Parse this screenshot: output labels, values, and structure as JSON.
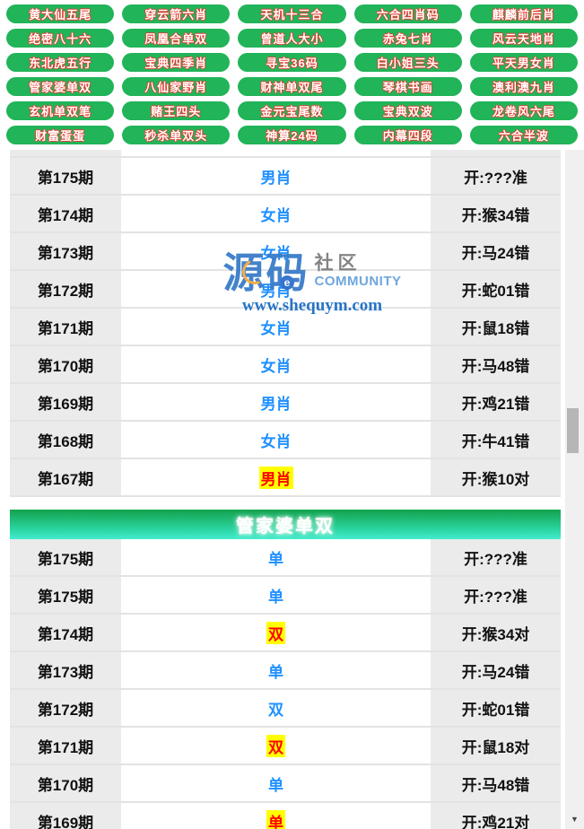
{
  "nav": {
    "buttons": [
      "黄大仙五尾",
      "穿云箭六肖",
      "天机十三合",
      "六合四肖码",
      "麒麟前后肖",
      "绝密八十六",
      "凤凰合单双",
      "曾道人大小",
      "赤兔七肖",
      "风云天地肖",
      "东北虎五行",
      "宝典四季肖",
      "寻宝36码",
      "白小姐三头",
      "平天男女肖",
      "管家婆单双",
      "八仙家野肖",
      "财神单双尾",
      "琴棋书画",
      "澳利澳九肖",
      "玄机单双笔",
      "赌王四头",
      "金元宝尾数",
      "宝典双波",
      "龙卷风六尾",
      "财富蛋蛋",
      "秒杀单双头",
      "神算24码",
      "内幕四段",
      "六合半波"
    ]
  },
  "watermark": {
    "logo_main": "源码",
    "logo_sub": "社区",
    "logo_sub_en": "COMMUNITY",
    "logo_e": "e",
    "url": "www.shequym.com"
  },
  "tables": [
    {
      "title": "",
      "rows": [
        {
          "period": "第175期",
          "pick": "男肖",
          "result": "开:???准",
          "hit": false
        },
        {
          "period": "第174期",
          "pick": "女肖",
          "result": "开:猴34错",
          "hit": false
        },
        {
          "period": "第173期",
          "pick": "女肖",
          "result": "开:马24错",
          "hit": false
        },
        {
          "period": "第172期",
          "pick": "男肖",
          "result": "开:蛇01错",
          "hit": false
        },
        {
          "period": "第171期",
          "pick": "女肖",
          "result": "开:鼠18错",
          "hit": false
        },
        {
          "period": "第170期",
          "pick": "女肖",
          "result": "开:马48错",
          "hit": false
        },
        {
          "period": "第169期",
          "pick": "男肖",
          "result": "开:鸡21错",
          "hit": false
        },
        {
          "period": "第168期",
          "pick": "女肖",
          "result": "开:牛41错",
          "hit": false
        },
        {
          "period": "第167期",
          "pick": "男肖",
          "result": "开:猴10对",
          "hit": true
        }
      ]
    },
    {
      "title": "管家婆单双",
      "rows": [
        {
          "period": "第175期",
          "pick": "单",
          "result": "开:???准",
          "hit": false
        },
        {
          "period": "第175期",
          "pick": "单",
          "result": "开:???准",
          "hit": false
        },
        {
          "period": "第174期",
          "pick": "双",
          "result": "开:猴34对",
          "hit": true
        },
        {
          "period": "第173期",
          "pick": "单",
          "result": "开:马24错",
          "hit": false
        },
        {
          "period": "第172期",
          "pick": "双",
          "result": "开:蛇01错",
          "hit": false
        },
        {
          "period": "第171期",
          "pick": "双",
          "result": "开:鼠18对",
          "hit": true
        },
        {
          "period": "第170期",
          "pick": "单",
          "result": "开:马48错",
          "hit": false
        },
        {
          "period": "第169期",
          "pick": "单",
          "result": "开:鸡21对",
          "hit": true
        }
      ]
    }
  ],
  "scrollbar": {
    "arrow_down": "▼"
  },
  "colors": {
    "button_green": "#21b459",
    "button_text_outline": "#e03c2d",
    "pick_blue": "#1e90ff",
    "hit_text_red": "#ff0000",
    "hit_bg_yellow": "#ffff00",
    "header_gradient_top": "#12a24c",
    "header_gradient_bottom": "#45ecd0",
    "cell_gray": "#ebebeb",
    "watermark_blue": "#3a7cc9"
  }
}
